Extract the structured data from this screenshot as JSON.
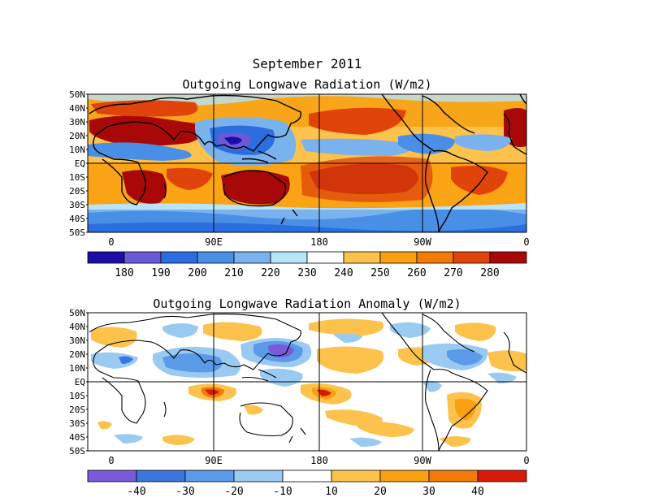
{
  "main_title": "September 2011",
  "panels": [
    {
      "title": "Outgoing Longwave Radiation (W/m2)",
      "lat_labels": [
        "50N",
        "40N",
        "30N",
        "20N",
        "10N",
        "EQ",
        "10S",
        "20S",
        "30S",
        "40S",
        "50S"
      ],
      "lon_labels": [
        "0",
        "90E",
        "180",
        "90W",
        "0"
      ],
      "colorbar": {
        "labels": [
          "180",
          "190",
          "200",
          "210",
          "220",
          "230",
          "240",
          "250",
          "260",
          "270",
          "280"
        ],
        "colors": [
          "#1c0ca8",
          "#6a5ad8",
          "#2c6ee0",
          "#4a8fe6",
          "#7ab2ee",
          "#b8e4f8",
          "#ffffff",
          "#fcc24c",
          "#f8a010",
          "#f27a06",
          "#e0440a",
          "#a80808"
        ]
      }
    },
    {
      "title": "Outgoing Longwave Radiation Anomaly (W/m2)",
      "lat_labels": [
        "50N",
        "40N",
        "30N",
        "20N",
        "10N",
        "EQ",
        "10S",
        "20S",
        "30S",
        "40S",
        "50S"
      ],
      "lon_labels": [
        "0",
        "90E",
        "180",
        "90W",
        "0"
      ],
      "colorbar": {
        "labels": [
          "-40",
          "-30",
          "-20",
          "-10",
          "10",
          "20",
          "30",
          "40"
        ],
        "colors": [
          "#7a5ad8",
          "#3a76dc",
          "#5a9ae8",
          "#9acaf2",
          "#ffffff",
          "#fcc24c",
          "#f8a010",
          "#f27a06",
          "#d81a0a"
        ]
      }
    }
  ]
}
